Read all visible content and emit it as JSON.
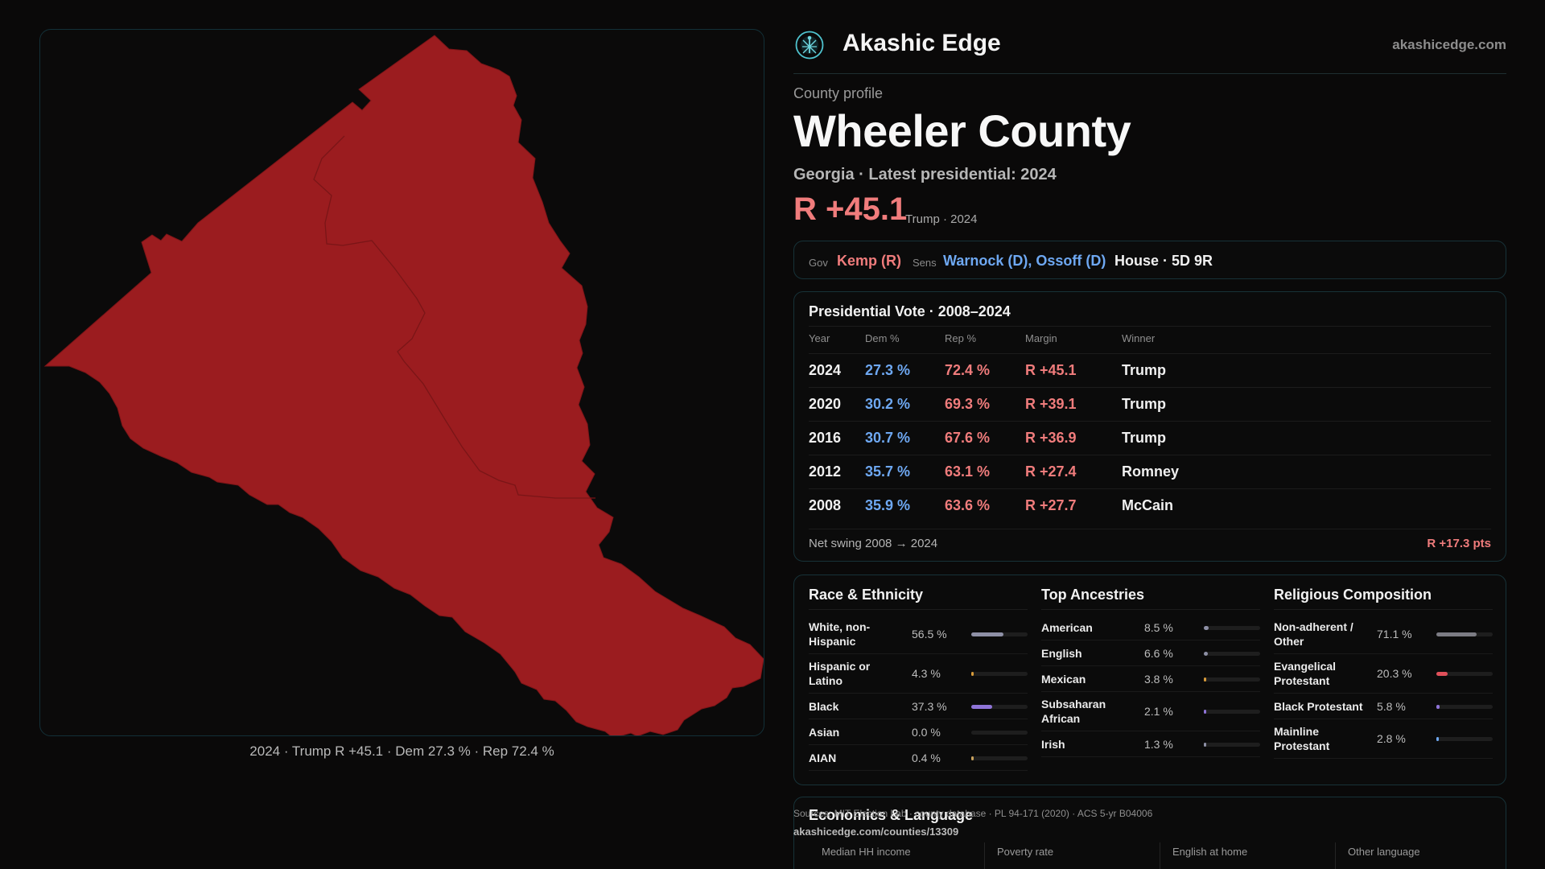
{
  "map": {
    "caption": "2024 · Trump R +45.1 · Dem 27.3 % · Rep 72.4 %",
    "fill_color": "#9b1c1f"
  },
  "header": {
    "logo_icon": "akashic-edge-logo-icon",
    "brand": "Akashic Edge",
    "site_url": "akashicedge.com"
  },
  "profile": {
    "label": "County profile",
    "county": "Wheeler County",
    "subline": "Georgia · Latest presidential: 2024",
    "margin": "R +45.1",
    "margin_note": "Trump · 2024"
  },
  "officials": {
    "gov_label": "Gov",
    "gov_value": "Kemp (R)",
    "sens_label": "Sens",
    "sens_value": "Warnock (D), Ossoff (D)",
    "house": "House · 5D 9R",
    "rep_color": "#f07c7c",
    "dem_color": "#6ea8f2"
  },
  "votes": {
    "title": "Presidential Vote · 2008–2024",
    "columns": [
      "Year",
      "Dem %",
      "Rep %",
      "Margin",
      "Winner"
    ],
    "rows": [
      {
        "year": "2024",
        "dem": "27.3 %",
        "rep": "72.4 %",
        "margin": "R +45.1",
        "winner": "Trump"
      },
      {
        "year": "2020",
        "dem": "30.2 %",
        "rep": "69.3 %",
        "margin": "R +39.1",
        "winner": "Trump"
      },
      {
        "year": "2016",
        "dem": "30.7 %",
        "rep": "67.6 %",
        "margin": "R +36.9",
        "winner": "Trump"
      },
      {
        "year": "2012",
        "dem": "35.7 %",
        "rep": "63.1 %",
        "margin": "R +27.4",
        "winner": "Romney"
      },
      {
        "year": "2008",
        "dem": "35.9 %",
        "rep": "63.6 %",
        "margin": "R +27.7",
        "winner": "McCain"
      }
    ],
    "swing_label": "Net swing 2008 → 2024",
    "swing_value": "R +17.3 pts"
  },
  "demographics": [
    {
      "title": "Race & Ethnicity",
      "items": [
        {
          "label": "White, non-Hispanic",
          "value": "56.5 %",
          "pct": 56.5,
          "color": "#8e90a6"
        },
        {
          "label": "Hispanic or Latino",
          "value": "4.3 %",
          "pct": 4.3,
          "color": "#d89b3a"
        },
        {
          "label": "Black",
          "value": "37.3 %",
          "pct": 37.3,
          "color": "#8f74d8"
        },
        {
          "label": "Asian",
          "value": "0.0 %",
          "pct": 0.0,
          "color": "#58a7c9"
        },
        {
          "label": "AIAN",
          "value": "0.4 %",
          "pct": 0.4,
          "color": "#c9a25d"
        }
      ]
    },
    {
      "title": "Top Ancestries",
      "items": [
        {
          "label": "American",
          "value": "8.5 %",
          "pct": 8.5,
          "color": "#8e90a6"
        },
        {
          "label": "English",
          "value": "6.6 %",
          "pct": 6.6,
          "color": "#8e90a6"
        },
        {
          "label": "Mexican",
          "value": "3.8 %",
          "pct": 3.8,
          "color": "#d89b3a"
        },
        {
          "label": "Subsaharan African",
          "value": "2.1 %",
          "pct": 2.1,
          "color": "#8f74d8"
        },
        {
          "label": "Irish",
          "value": "1.3 %",
          "pct": 1.3,
          "color": "#8e90a6"
        }
      ]
    },
    {
      "title": "Religious Composition",
      "items": [
        {
          "label": "Non-adherent / Other",
          "value": "71.1 %",
          "pct": 71.1,
          "color": "#7c7c84"
        },
        {
          "label": "Evangelical Protestant",
          "value": "20.3 %",
          "pct": 20.3,
          "color": "#e0505a"
        },
        {
          "label": "Black Protestant",
          "value": "5.8 %",
          "pct": 5.8,
          "color": "#8f74d8"
        },
        {
          "label": "Mainline Protestant",
          "value": "2.8 %",
          "pct": 2.8,
          "color": "#6ea8f2"
        }
      ]
    }
  ],
  "economics": {
    "title": "Economics & Language",
    "items": [
      "Median HH income",
      "Poverty rate",
      "English at home",
      "Other language"
    ]
  },
  "footer": {
    "source": "Sources: MIT Election Lab · county database · PL 94-171 (2020) · ACS 5-yr B04006",
    "url": "akashicedge.com/counties/13309"
  }
}
